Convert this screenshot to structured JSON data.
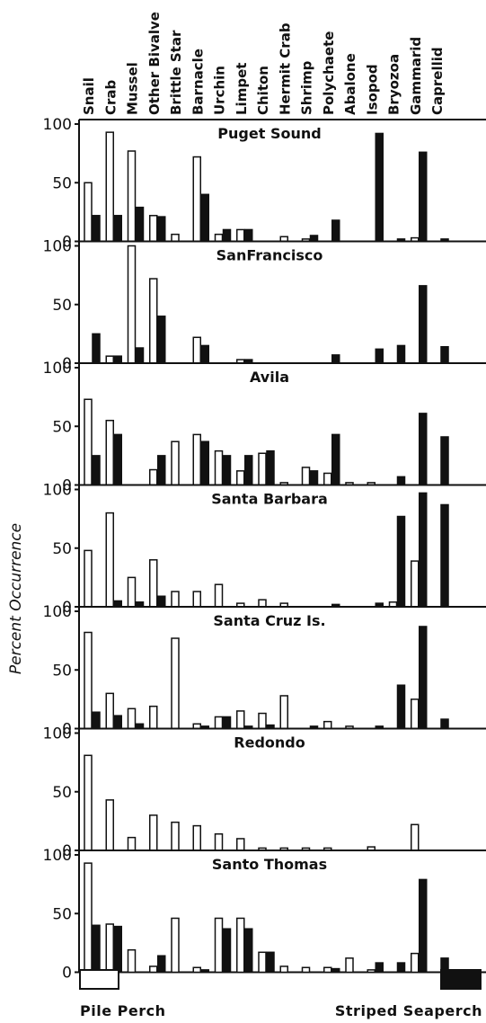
{
  "chart_data": {
    "type": "bar",
    "categories": [
      "Snail",
      "Crab",
      "Mussel",
      "Other Bivalve",
      "Brittle Star",
      "Barnacle",
      "Urchin",
      "Limpet",
      "Chiton",
      "Hermit Crab",
      "Shrimp",
      "Polychaete",
      "Abalone",
      "Isopod",
      "Bryozoa",
      "Gammarid",
      "Caprellid"
    ],
    "ylabel": "Percent Occurrence",
    "ylim": [
      0,
      100
    ],
    "yticks": [
      "100",
      "50",
      "0"
    ],
    "legend": {
      "placement": "bottom",
      "entries": [
        "Pile Perch",
        "Striped Seaperch"
      ]
    },
    "colors": {
      "pile_perch": "#ffffff",
      "striped_seaperch": "#111111",
      "axis": "#111111"
    },
    "panels": [
      {
        "title": "Puget Sound",
        "series": [
          {
            "name": "Pile Perch",
            "values": [
              50,
              93,
              77,
              22,
              6,
              72,
              6,
              10,
              0,
              4,
              2,
              0,
              0,
              0,
              0,
              3,
              0
            ]
          },
          {
            "name": "Striped Seaperch",
            "values": [
              22,
              22,
              29,
              21,
              0,
              40,
              10,
              10,
              0,
              0,
              5,
              18,
              0,
              92,
              2,
              76,
              2
            ]
          }
        ]
      },
      {
        "title": "SanFrancisco",
        "series": [
          {
            "name": "Pile Perch",
            "values": [
              0,
              6,
              100,
              72,
              0,
              22,
              0,
              3,
              0,
              0,
              0,
              0,
              0,
              0,
              0,
              0,
              0
            ]
          },
          {
            "name": "Striped Seaperch",
            "values": [
              25,
              6,
              13,
              40,
              0,
              15,
              0,
              3,
              0,
              0,
              0,
              7,
              0,
              12,
              15,
              66,
              14
            ]
          }
        ]
      },
      {
        "title": "Avila",
        "series": [
          {
            "name": "Pile Perch",
            "values": [
              73,
              55,
              0,
              13,
              37,
              43,
              29,
              12,
              27,
              2,
              15,
              10,
              2,
              2,
              0,
              0,
              0
            ]
          },
          {
            "name": "Striped Seaperch",
            "values": [
              25,
              43,
              0,
              25,
              0,
              37,
              25,
              25,
              29,
              0,
              12,
              43,
              0,
              0,
              7,
              61,
              41
            ]
          }
        ]
      },
      {
        "title": "Santa Barbara",
        "series": [
          {
            "name": "Pile Perch",
            "values": [
              48,
              80,
              25,
              40,
              13,
              13,
              19,
              3,
              6,
              3,
              0,
              0,
              0,
              0,
              4,
              39,
              0
            ]
          },
          {
            "name": "Striped Seaperch",
            "values": [
              0,
              5,
              4,
              9,
              0,
              0,
              0,
              0,
              0,
              0,
              0,
              2,
              0,
              3,
              77,
              97,
              87
            ]
          }
        ]
      },
      {
        "title": "Santa Cruz Is.",
        "series": [
          {
            "name": "Pile Perch",
            "values": [
              82,
              30,
              17,
              19,
              77,
              4,
              10,
              15,
              13,
              28,
              0,
              6,
              2,
              0,
              0,
              25,
              0
            ]
          },
          {
            "name": "Striped Seaperch",
            "values": [
              14,
              11,
              4,
              0,
              0,
              2,
              10,
              2,
              3,
              0,
              2,
              0,
              0,
              2,
              37,
              87,
              8
            ]
          }
        ]
      },
      {
        "title": "Redondo",
        "series": [
          {
            "name": "Pile Perch",
            "values": [
              81,
              43,
              11,
              30,
              24,
              21,
              14,
              10,
              2,
              2,
              2,
              2,
              0,
              3,
              0,
              22,
              0
            ]
          },
          {
            "name": "Striped Seaperch",
            "values": [
              0,
              0,
              0,
              0,
              0,
              0,
              0,
              0,
              0,
              0,
              0,
              0,
              0,
              0,
              0,
              0,
              0
            ]
          }
        ]
      },
      {
        "title": "Santo Thomas",
        "series": [
          {
            "name": "Pile Perch",
            "values": [
              93,
              41,
              19,
              5,
              46,
              4,
              46,
              46,
              17,
              5,
              4,
              4,
              12,
              2,
              0,
              16,
              0
            ]
          },
          {
            "name": "Striped Seaperch",
            "values": [
              40,
              39,
              0,
              14,
              0,
              2,
              37,
              37,
              17,
              0,
              0,
              3,
              0,
              8,
              8,
              79,
              12
            ]
          }
        ]
      }
    ]
  }
}
